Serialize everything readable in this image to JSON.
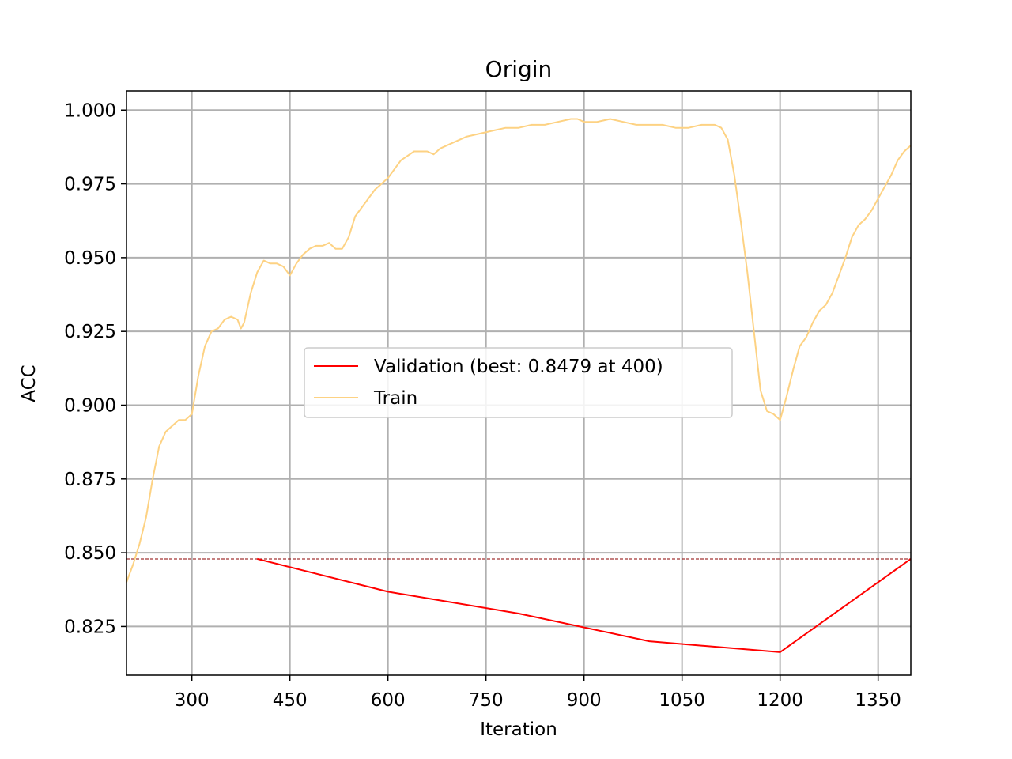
{
  "chart_data": {
    "type": "line",
    "title": "Origin",
    "xlabel": "Iteration",
    "ylabel": "ACC",
    "xlim": [
      200,
      1400
    ],
    "ylim": [
      0.8085,
      1.0065
    ],
    "xticks": [
      300,
      450,
      600,
      750,
      900,
      1050,
      1200,
      1350
    ],
    "yticks": [
      0.825,
      0.85,
      0.875,
      0.9,
      0.925,
      0.95,
      0.975,
      1.0
    ],
    "ytick_labels": [
      "0.825",
      "0.850",
      "0.875",
      "0.900",
      "0.925",
      "0.950",
      "0.975",
      "1.000"
    ],
    "grid": true,
    "legend_position": "center",
    "best_reference": {
      "y": 0.8479,
      "color": "#8b0000",
      "style": "dashed"
    },
    "series": [
      {
        "name": "Validation (best: 0.8479 at 400)",
        "color": "#ff0000",
        "x": [
          400,
          600,
          800,
          1000,
          1200,
          1400
        ],
        "y": [
          0.8479,
          0.8368,
          0.8294,
          0.82,
          0.8163,
          0.8479
        ]
      },
      {
        "name": "Train",
        "color": "#fdd283",
        "x": [
          200,
          210,
          220,
          230,
          240,
          250,
          260,
          270,
          280,
          290,
          300,
          310,
          320,
          330,
          340,
          350,
          360,
          370,
          375,
          380,
          390,
          400,
          410,
          420,
          430,
          440,
          450,
          460,
          470,
          480,
          490,
          500,
          510,
          520,
          530,
          540,
          550,
          560,
          570,
          580,
          590,
          600,
          620,
          640,
          660,
          670,
          680,
          700,
          720,
          740,
          760,
          780,
          800,
          820,
          840,
          860,
          880,
          890,
          900,
          920,
          940,
          960,
          980,
          1000,
          1020,
          1040,
          1060,
          1080,
          1100,
          1110,
          1120,
          1130,
          1140,
          1150,
          1160,
          1170,
          1180,
          1190,
          1200,
          1210,
          1220,
          1230,
          1240,
          1250,
          1260,
          1270,
          1280,
          1290,
          1300,
          1310,
          1320,
          1330,
          1340,
          1350,
          1360,
          1370,
          1380,
          1390,
          1400
        ],
        "y": [
          0.84,
          0.846,
          0.853,
          0.862,
          0.875,
          0.886,
          0.891,
          0.893,
          0.895,
          0.895,
          0.897,
          0.91,
          0.92,
          0.925,
          0.926,
          0.929,
          0.93,
          0.929,
          0.926,
          0.928,
          0.938,
          0.945,
          0.949,
          0.948,
          0.948,
          0.947,
          0.944,
          0.948,
          0.951,
          0.953,
          0.954,
          0.954,
          0.955,
          0.953,
          0.953,
          0.957,
          0.964,
          0.967,
          0.97,
          0.973,
          0.975,
          0.977,
          0.983,
          0.986,
          0.986,
          0.985,
          0.987,
          0.989,
          0.991,
          0.992,
          0.993,
          0.994,
          0.994,
          0.995,
          0.995,
          0.996,
          0.997,
          0.997,
          0.996,
          0.996,
          0.997,
          0.996,
          0.995,
          0.995,
          0.995,
          0.994,
          0.994,
          0.995,
          0.995,
          0.994,
          0.99,
          0.978,
          0.962,
          0.945,
          0.925,
          0.905,
          0.898,
          0.897,
          0.895,
          0.903,
          0.912,
          0.92,
          0.923,
          0.928,
          0.932,
          0.934,
          0.938,
          0.944,
          0.95,
          0.957,
          0.961,
          0.963,
          0.966,
          0.97,
          0.974,
          0.978,
          0.983,
          0.986,
          0.988
        ]
      }
    ]
  }
}
